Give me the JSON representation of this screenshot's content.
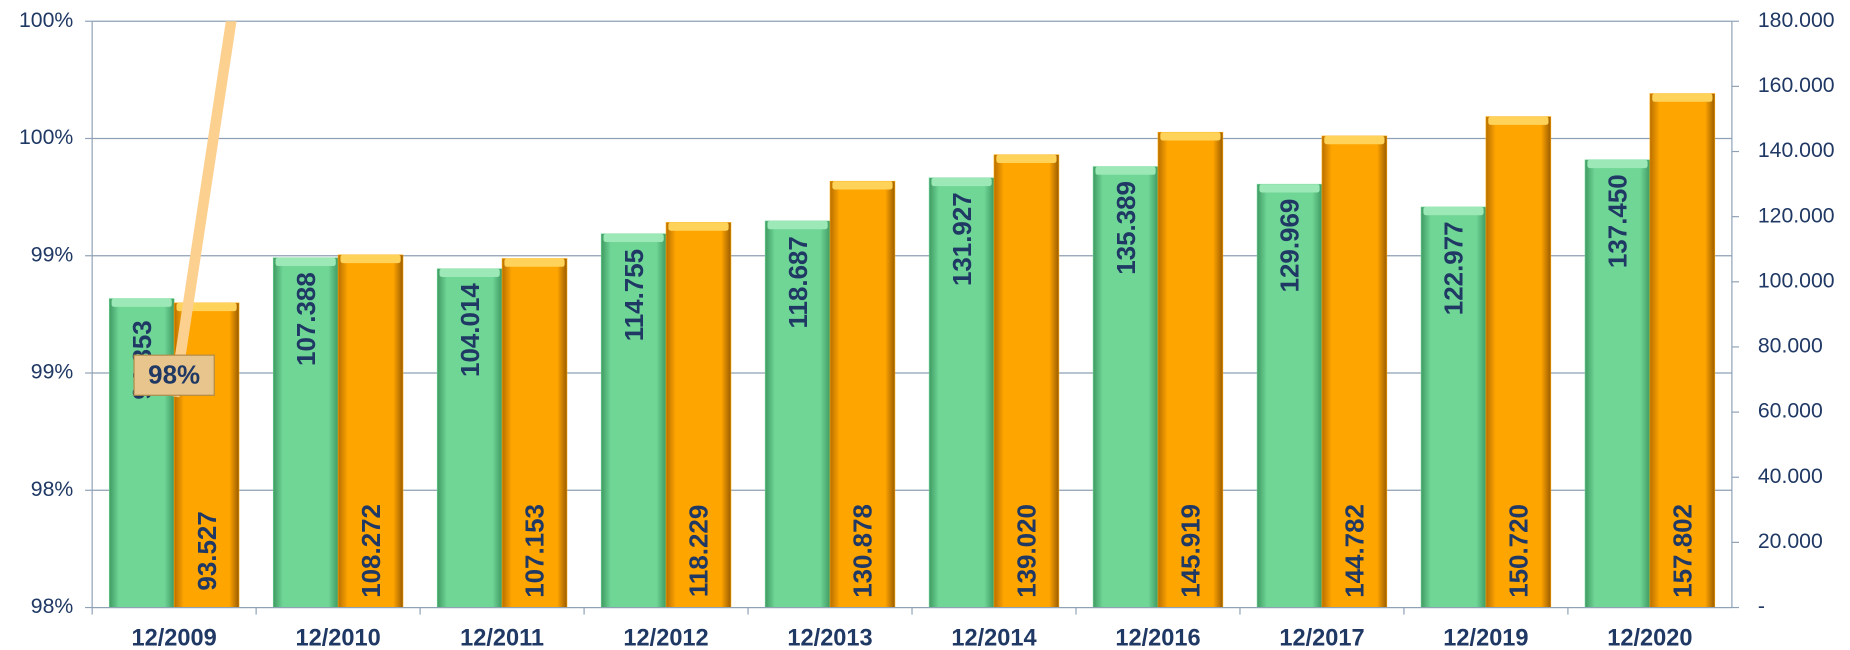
{
  "chart_data": {
    "type": "bar",
    "categories": [
      "12/2009",
      "12/2010",
      "12/2011",
      "12/2012",
      "12/2013",
      "12/2014",
      "12/2016",
      "12/2017",
      "12/2019",
      "12/2020"
    ],
    "series": [
      {
        "color": "#6fd696",
        "axis": "y2",
        "values": [
          94853,
          107388,
          104014,
          114755,
          118687,
          131927,
          135389,
          129969,
          122977,
          137450
        ],
        "value_labels": [
          "94.853",
          "107.388",
          "104.014",
          "114.755",
          "118.687",
          "131.927",
          "135.389",
          "129.969",
          "122.977",
          "137.450"
        ]
      },
      {
        "color": "#ffa500",
        "axis": "y2",
        "values": [
          93527,
          108272,
          107153,
          118229,
          130878,
          139020,
          145919,
          144782,
          150720,
          157802
        ],
        "value_labels": [
          "93.527",
          "108.272",
          "107.153",
          "118.229",
          "130.878",
          "139.020",
          "145.919",
          "144.782",
          "150.720",
          "157.802"
        ]
      },
      {
        "type": "line",
        "color": "#fcd08f",
        "values": [
          98.4,
          103,
          null,
          null,
          null,
          null,
          null,
          null,
          null,
          null
        ],
        "value_labels": [
          "98%",
          null,
          null,
          null,
          null,
          null,
          null,
          null,
          null,
          null
        ]
      }
    ],
    "ylim": [
      97.5,
      100
    ],
    "yticks": [
      {
        "value": 97.5,
        "label": "98%"
      },
      {
        "value": 98,
        "label": "98%"
      },
      {
        "value": 98.5,
        "label": "99%"
      },
      {
        "value": 99,
        "label": "99%"
      },
      {
        "value": 99.5,
        "label": "100%"
      },
      {
        "value": 100,
        "label": "100%"
      }
    ],
    "y2lim": [
      0,
      180000
    ],
    "y2ticks": [
      {
        "value": 0,
        "label": "-"
      },
      {
        "value": 20000,
        "label": "20.000"
      },
      {
        "value": 40000,
        "label": "40.000"
      },
      {
        "value": 60000,
        "label": "60.000"
      },
      {
        "value": 80000,
        "label": "80.000"
      },
      {
        "value": 100000,
        "label": "100.000"
      },
      {
        "value": 120000,
        "label": "120.000"
      },
      {
        "value": 140000,
        "label": "140.000"
      },
      {
        "value": 160000,
        "label": "160.000"
      },
      {
        "value": 180000,
        "label": "180.000"
      }
    ],
    "grid": true
  }
}
